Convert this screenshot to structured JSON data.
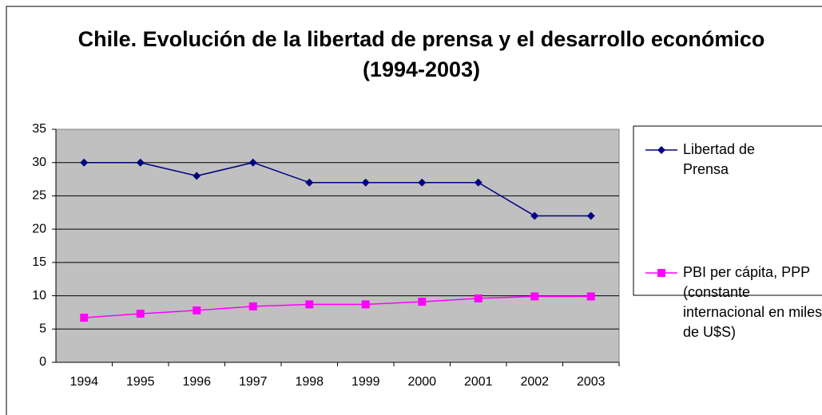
{
  "chart_data": {
    "type": "line",
    "title": "Chile. Evolución de la libertad de prensa y el desarrollo económico (1994-2003)",
    "categories": [
      "1994",
      "1995",
      "1996",
      "1997",
      "1998",
      "1999",
      "2000",
      "2001",
      "2002",
      "2003"
    ],
    "series": [
      {
        "name": "Libertad de Prensa",
        "color": "#000080",
        "marker": "diamond",
        "values": [
          30,
          30,
          28,
          30,
          27,
          27,
          27,
          27,
          22,
          22
        ]
      },
      {
        "name": "PBI per cápita, PPP (constante internacional en miles de U$S)",
        "color": "#ff00ff",
        "marker": "square",
        "values": [
          6.7,
          7.3,
          7.8,
          8.4,
          8.7,
          8.7,
          9.1,
          9.6,
          9.9,
          9.9
        ]
      }
    ],
    "ylim": [
      0,
      35
    ],
    "yticks": [
      0,
      5,
      10,
      15,
      20,
      25,
      30,
      35
    ],
    "grid": true,
    "legend": "right"
  }
}
